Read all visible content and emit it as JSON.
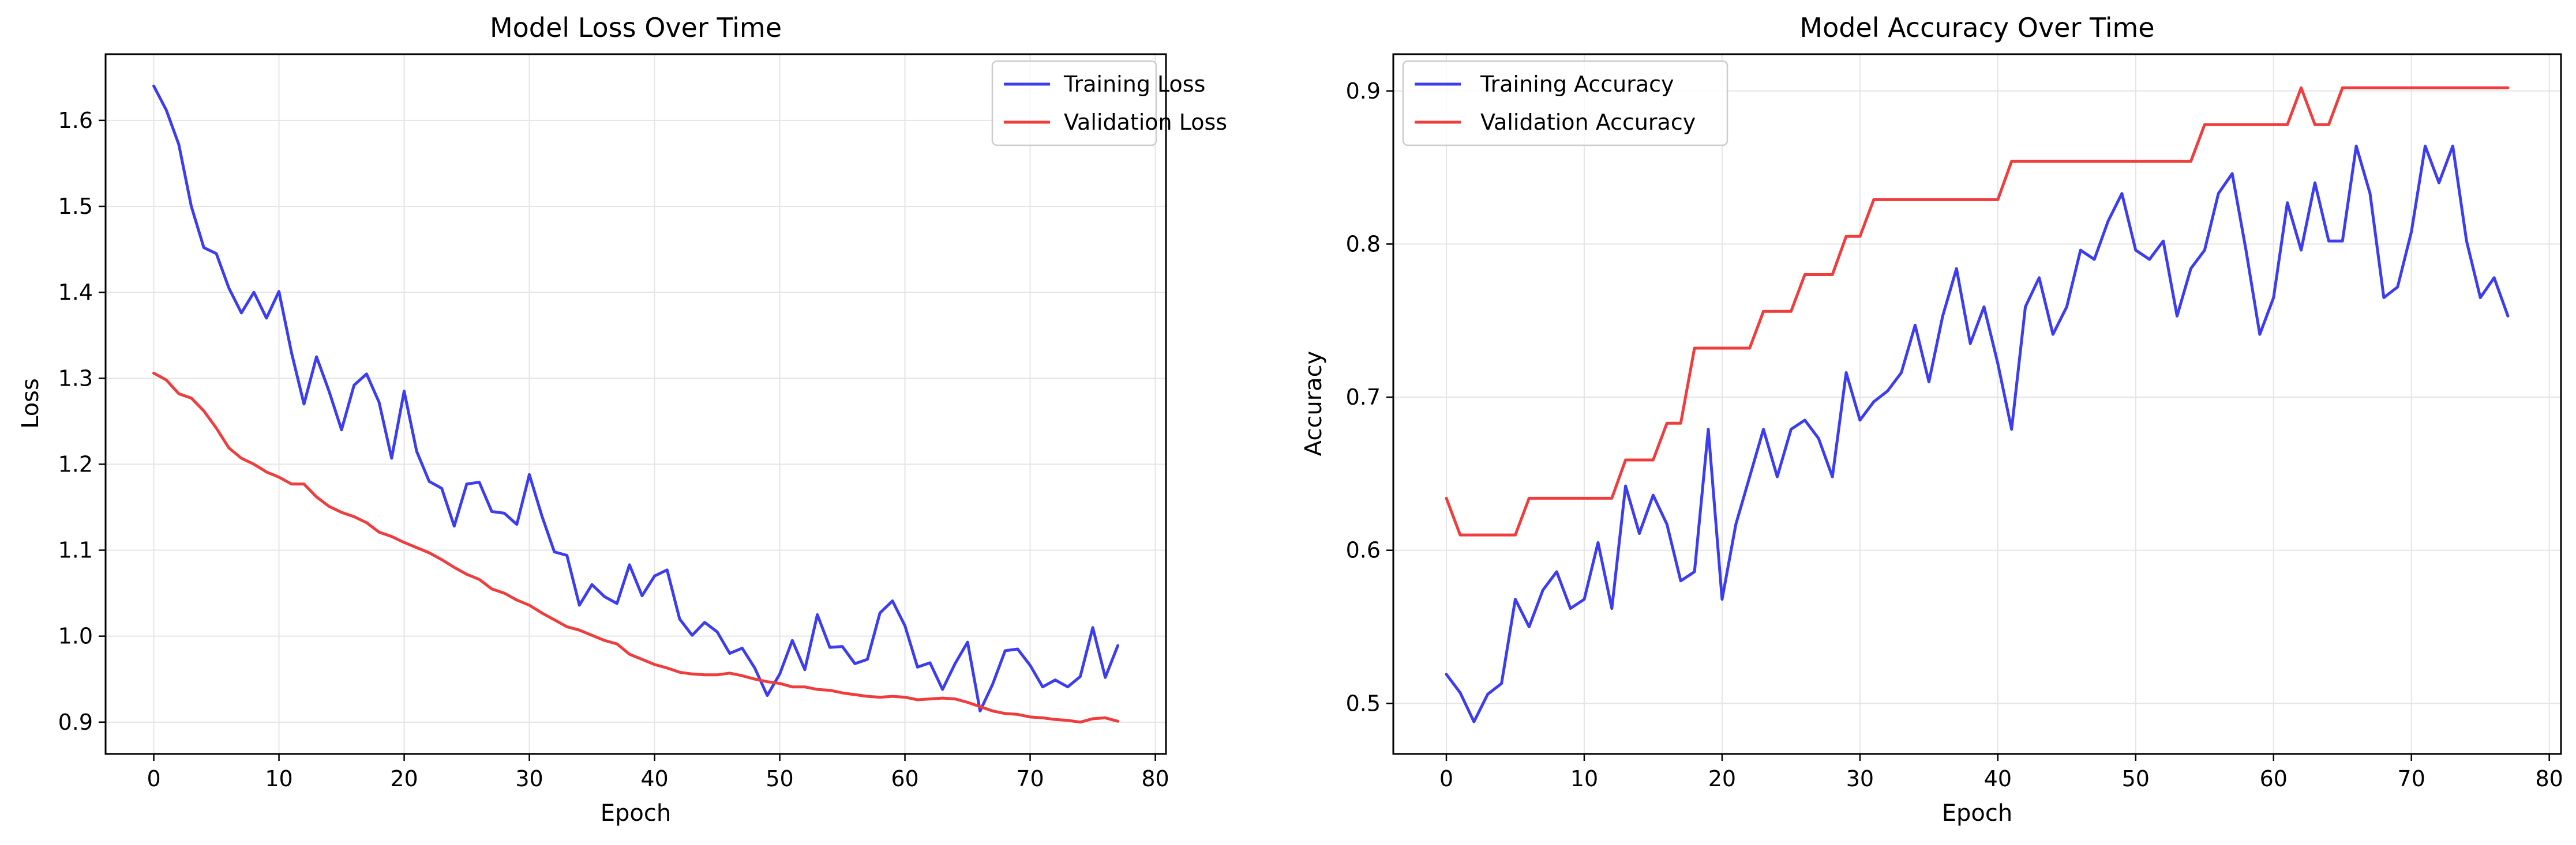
{
  "figure": {
    "background": "#ffffff",
    "grid_color": "#e5e5e5",
    "axis_color": "#000000"
  },
  "chart_data": [
    {
      "type": "line",
      "title": "Model Loss Over Time",
      "xlabel": "Epoch",
      "ylabel": "Loss",
      "xlim": [
        -3.85,
        80.85
      ],
      "ylim": [
        0.863,
        1.677
      ],
      "xticks": [
        0,
        10,
        20,
        30,
        40,
        50,
        60,
        70,
        80
      ],
      "yticks": [
        0.9,
        1.0,
        1.1,
        1.2,
        1.3,
        1.4,
        1.5,
        1.6
      ],
      "ytick_labels": [
        "0.9",
        "1.0",
        "1.1",
        "1.2",
        "1.3",
        "1.4",
        "1.5",
        "1.6"
      ],
      "grid": true,
      "legend": "top-right",
      "x": [
        0,
        1,
        2,
        3,
        4,
        5,
        6,
        7,
        8,
        9,
        10,
        11,
        12,
        13,
        14,
        15,
        16,
        17,
        18,
        19,
        20,
        21,
        22,
        23,
        24,
        25,
        26,
        27,
        28,
        29,
        30,
        31,
        32,
        33,
        34,
        35,
        36,
        37,
        38,
        39,
        40,
        41,
        42,
        43,
        44,
        45,
        46,
        47,
        48,
        49,
        50,
        51,
        52,
        53,
        54,
        55,
        56,
        57,
        58,
        59,
        60,
        61,
        62,
        63,
        64,
        65,
        66,
        67,
        68,
        69,
        70,
        71,
        72,
        73,
        74,
        75,
        76,
        77
      ],
      "series": [
        {
          "name": "Training Loss",
          "color": "#3c3cf0",
          "values": [
            1.64,
            1.612,
            1.572,
            1.5,
            1.452,
            1.445,
            1.405,
            1.376,
            1.4,
            1.37,
            1.401,
            1.33,
            1.27,
            1.325,
            1.285,
            1.24,
            1.292,
            1.305,
            1.272,
            1.207,
            1.285,
            1.215,
            1.18,
            1.172,
            1.128,
            1.177,
            1.179,
            1.145,
            1.143,
            1.13,
            1.188,
            1.14,
            1.098,
            1.094,
            1.036,
            1.06,
            1.046,
            1.038,
            1.083,
            1.047,
            1.07,
            1.077,
            1.02,
            1.001,
            1.016,
            1.005,
            0.98,
            0.986,
            0.963,
            0.931,
            0.956,
            0.995,
            0.961,
            1.025,
            0.987,
            0.988,
            0.968,
            0.973,
            1.027,
            1.041,
            1.012,
            0.964,
            0.969,
            0.938,
            0.968,
            0.993,
            0.913,
            0.944,
            0.983,
            0.985,
            0.966,
            0.941,
            0.949,
            0.941,
            0.953,
            1.01,
            0.952,
            0.989
          ]
        },
        {
          "name": "Validation Loss",
          "color": "#f03c3c",
          "values": [
            1.306,
            1.298,
            1.282,
            1.277,
            1.262,
            1.242,
            1.219,
            1.207,
            1.2,
            1.191,
            1.185,
            1.177,
            1.177,
            1.162,
            1.151,
            1.144,
            1.139,
            1.132,
            1.121,
            1.116,
            1.109,
            1.103,
            1.097,
            1.089,
            1.08,
            1.072,
            1.066,
            1.055,
            1.05,
            1.042,
            1.036,
            1.027,
            1.019,
            1.011,
            1.007,
            1.001,
            0.995,
            0.991,
            0.979,
            0.973,
            0.967,
            0.963,
            0.958,
            0.956,
            0.955,
            0.955,
            0.957,
            0.954,
            0.95,
            0.947,
            0.945,
            0.941,
            0.941,
            0.938,
            0.937,
            0.934,
            0.932,
            0.93,
            0.929,
            0.93,
            0.929,
            0.926,
            0.927,
            0.928,
            0.927,
            0.923,
            0.918,
            0.913,
            0.91,
            0.909,
            0.906,
            0.905,
            0.903,
            0.902,
            0.9,
            0.904,
            0.905,
            0.901
          ]
        }
      ]
    },
    {
      "type": "line",
      "title": "Model Accuracy Over Time",
      "xlabel": "Epoch",
      "ylabel": "Accuracy",
      "xlim": [
        -3.85,
        80.85
      ],
      "ylim": [
        0.467,
        0.924
      ],
      "xticks": [
        0,
        10,
        20,
        30,
        40,
        50,
        60,
        70,
        80
      ],
      "yticks": [
        0.5,
        0.6,
        0.7,
        0.8,
        0.9
      ],
      "ytick_labels": [
        "0.5",
        "0.6",
        "0.7",
        "0.8",
        "0.9"
      ],
      "grid": true,
      "legend": "top-left",
      "x": [
        0,
        1,
        2,
        3,
        4,
        5,
        6,
        7,
        8,
        9,
        10,
        11,
        12,
        13,
        14,
        15,
        16,
        17,
        18,
        19,
        20,
        21,
        22,
        23,
        24,
        25,
        26,
        27,
        28,
        29,
        30,
        31,
        32,
        33,
        34,
        35,
        36,
        37,
        38,
        39,
        40,
        41,
        42,
        43,
        44,
        45,
        46,
        47,
        48,
        49,
        50,
        51,
        52,
        53,
        54,
        55,
        56,
        57,
        58,
        59,
        60,
        61,
        62,
        63,
        64,
        65,
        66,
        67,
        68,
        69,
        70,
        71,
        72,
        73,
        74,
        75,
        76,
        77
      ],
      "series": [
        {
          "name": "Training Accuracy",
          "color": "#3c3cf0",
          "values": [
            0.519,
            0.507,
            0.488,
            0.506,
            0.513,
            0.568,
            0.55,
            0.574,
            0.586,
            0.562,
            0.568,
            0.605,
            0.562,
            0.642,
            0.611,
            0.636,
            0.617,
            0.58,
            0.586,
            0.679,
            0.568,
            0.617,
            0.648,
            0.679,
            0.648,
            0.679,
            0.685,
            0.673,
            0.648,
            0.716,
            0.685,
            0.697,
            0.704,
            0.716,
            0.747,
            0.71,
            0.753,
            0.784,
            0.735,
            0.759,
            0.722,
            0.679,
            0.759,
            0.778,
            0.741,
            0.759,
            0.796,
            0.79,
            0.815,
            0.833,
            0.796,
            0.79,
            0.802,
            0.753,
            0.784,
            0.796,
            0.833,
            0.846,
            0.796,
            0.741,
            0.765,
            0.827,
            0.796,
            0.84,
            0.802,
            0.802,
            0.864,
            0.833,
            0.765,
            0.772,
            0.808,
            0.864,
            0.84,
            0.864,
            0.802,
            0.765,
            0.778,
            0.753
          ]
        },
        {
          "name": "Validation Accuracy",
          "color": "#f03c3c",
          "values": [
            0.634,
            0.61,
            0.61,
            0.61,
            0.61,
            0.61,
            0.634,
            0.634,
            0.634,
            0.634,
            0.634,
            0.634,
            0.634,
            0.659,
            0.659,
            0.659,
            0.683,
            0.683,
            0.732,
            0.732,
            0.732,
            0.732,
            0.732,
            0.756,
            0.756,
            0.756,
            0.78,
            0.78,
            0.78,
            0.805,
            0.805,
            0.829,
            0.829,
            0.829,
            0.829,
            0.829,
            0.829,
            0.829,
            0.829,
            0.829,
            0.829,
            0.854,
            0.854,
            0.854,
            0.854,
            0.854,
            0.854,
            0.854,
            0.854,
            0.854,
            0.854,
            0.854,
            0.854,
            0.854,
            0.854,
            0.878,
            0.878,
            0.878,
            0.878,
            0.878,
            0.878,
            0.878,
            0.902,
            0.878,
            0.878,
            0.902,
            0.902,
            0.902,
            0.902,
            0.902,
            0.902,
            0.902,
            0.902,
            0.902,
            0.902,
            0.902,
            0.902,
            0.902
          ]
        }
      ]
    }
  ]
}
